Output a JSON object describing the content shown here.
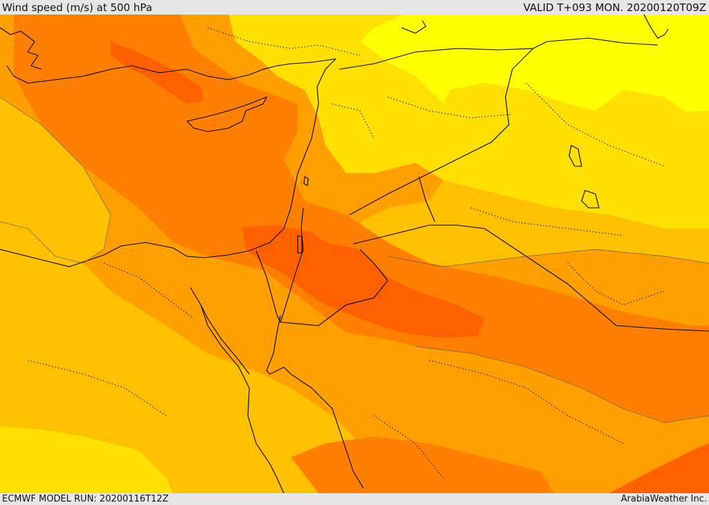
{
  "header": {
    "title": "Wind speed (m/s) at 500 hPa",
    "valid": "VALID T+093 MON. 20200120T09Z"
  },
  "footer": {
    "model_run": "ECMWF MODEL RUN: 20200116T12Z",
    "credit": "ArabiaWeather Inc."
  },
  "map": {
    "variable": "Wind speed",
    "units": "m/s",
    "level": "500 hPa",
    "region": "Eastern Mediterranean / Middle East",
    "colors": {
      "band_1": "#ffff00",
      "band_2": "#ffe000",
      "band_3": "#ffc000",
      "band_4": "#ffa000",
      "band_5": "#ff8000",
      "band_6": "#ff6000",
      "coastline": "#000000",
      "contour": "#555555"
    }
  }
}
